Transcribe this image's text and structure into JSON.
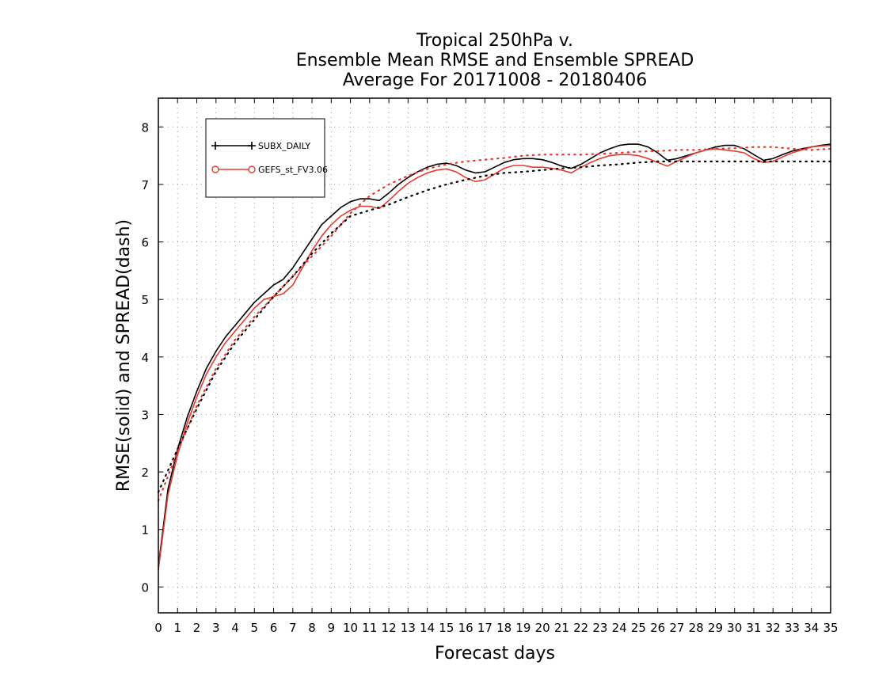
{
  "chart_data": {
    "type": "line",
    "title": [
      "Tropical 250hPa v.",
      "Ensemble Mean RMSE and Ensemble SPREAD",
      "Average For 20171008 - 20180406"
    ],
    "xlabel": "Forecast days",
    "ylabel": "RMSE(solid) and SPREAD(dash)",
    "xlim": [
      0,
      35
    ],
    "ylim": [
      -0.45,
      8.5
    ],
    "xticks": [
      0,
      1,
      2,
      3,
      4,
      5,
      6,
      7,
      8,
      9,
      10,
      11,
      12,
      13,
      14,
      15,
      16,
      17,
      18,
      19,
      20,
      21,
      22,
      23,
      24,
      25,
      26,
      27,
      28,
      29,
      30,
      31,
      32,
      33,
      34,
      35
    ],
    "yticks": [
      0,
      1,
      2,
      3,
      4,
      5,
      6,
      7,
      8
    ],
    "grid": true,
    "legend_position": "top-left",
    "series": [
      {
        "name": "SUBX_DAILY",
        "style": "solid",
        "color": "#000000",
        "marker": "plus",
        "x": [
          0,
          0.5,
          1,
          1.5,
          2,
          2.5,
          3,
          3.5,
          4,
          4.5,
          5,
          5.5,
          6,
          6.5,
          7,
          7.5,
          8,
          8.5,
          9,
          9.5,
          10,
          10.5,
          11,
          11.5,
          12,
          12.5,
          13,
          13.5,
          14,
          14.5,
          15,
          15.5,
          16,
          16.5,
          17,
          17.5,
          18,
          18.5,
          19,
          19.5,
          20,
          20.5,
          21,
          21.5,
          22,
          22.5,
          23,
          23.5,
          24,
          24.5,
          25,
          25.5,
          26,
          26.5,
          27,
          27.5,
          28,
          28.5,
          29,
          29.5,
          30,
          30.5,
          31,
          31.5,
          32,
          32.5,
          33,
          33.5,
          34,
          34.5,
          35
        ],
        "values": [
          0.35,
          1.7,
          2.4,
          2.95,
          3.4,
          3.8,
          4.1,
          4.35,
          4.55,
          4.75,
          4.95,
          5.1,
          5.25,
          5.35,
          5.55,
          5.8,
          6.05,
          6.3,
          6.45,
          6.6,
          6.7,
          6.75,
          6.75,
          6.72,
          6.85,
          7.0,
          7.12,
          7.22,
          7.3,
          7.35,
          7.37,
          7.33,
          7.25,
          7.2,
          7.22,
          7.3,
          7.38,
          7.43,
          7.45,
          7.45,
          7.43,
          7.38,
          7.32,
          7.28,
          7.35,
          7.45,
          7.55,
          7.62,
          7.68,
          7.7,
          7.7,
          7.65,
          7.55,
          7.42,
          7.45,
          7.5,
          7.55,
          7.6,
          7.65,
          7.68,
          7.68,
          7.62,
          7.52,
          7.42,
          7.45,
          7.52,
          7.58,
          7.62,
          7.65,
          7.68,
          7.7
        ]
      },
      {
        "name": "GEFS_st_FV3.06",
        "style": "solid",
        "color": "#e8392f",
        "marker": "circle",
        "x": [
          0,
          0.5,
          1,
          1.5,
          2,
          2.5,
          3,
          3.5,
          4,
          4.5,
          5,
          5.5,
          6,
          6.5,
          7,
          7.5,
          8,
          8.5,
          9,
          9.5,
          10,
          10.5,
          11,
          11.5,
          12,
          12.5,
          13,
          13.5,
          14,
          14.5,
          15,
          15.5,
          16,
          16.5,
          17,
          17.5,
          18,
          18.5,
          19,
          19.5,
          20,
          20.5,
          21,
          21.5,
          22,
          22.5,
          23,
          23.5,
          24,
          24.5,
          25,
          25.5,
          26,
          26.5,
          27,
          27.5,
          28,
          28.5,
          29,
          29.5,
          30,
          30.5,
          31,
          31.5,
          32,
          32.5,
          33,
          33.5,
          34,
          34.5,
          35
        ],
        "values": [
          0.3,
          1.6,
          2.3,
          2.85,
          3.3,
          3.7,
          4.0,
          4.25,
          4.45,
          4.65,
          4.85,
          5.0,
          5.05,
          5.1,
          5.25,
          5.55,
          5.85,
          6.1,
          6.3,
          6.45,
          6.55,
          6.62,
          6.62,
          6.58,
          6.72,
          6.88,
          7.02,
          7.12,
          7.2,
          7.25,
          7.27,
          7.22,
          7.12,
          7.05,
          7.08,
          7.18,
          7.28,
          7.33,
          7.33,
          7.3,
          7.3,
          7.28,
          7.25,
          7.2,
          7.3,
          7.38,
          7.45,
          7.5,
          7.52,
          7.52,
          7.5,
          7.45,
          7.38,
          7.32,
          7.4,
          7.48,
          7.55,
          7.6,
          7.62,
          7.6,
          7.58,
          7.55,
          7.45,
          7.38,
          7.4,
          7.48,
          7.55,
          7.6,
          7.65,
          7.67,
          7.68
        ]
      },
      {
        "name": "SUBX_DAILY spread",
        "style": "dotted",
        "color": "#000000",
        "x": [
          0,
          1,
          2,
          3,
          4,
          5,
          6,
          7,
          8,
          9,
          10,
          11,
          12,
          13,
          14,
          15,
          16,
          17,
          18,
          19,
          20,
          21,
          22,
          23,
          24,
          25,
          26,
          27,
          28,
          29,
          30,
          31,
          32,
          33,
          34,
          35
        ],
        "values": [
          1.65,
          2.4,
          3.1,
          3.75,
          4.25,
          4.65,
          5.05,
          5.4,
          5.8,
          6.15,
          6.45,
          6.55,
          6.65,
          6.78,
          6.9,
          7.0,
          7.08,
          7.15,
          7.2,
          7.22,
          7.25,
          7.28,
          7.3,
          7.33,
          7.35,
          7.38,
          7.4,
          7.4,
          7.4,
          7.4,
          7.4,
          7.4,
          7.4,
          7.4,
          7.4,
          7.4
        ]
      },
      {
        "name": "GEFS_st_FV3.06 spread",
        "style": "dotted",
        "color": "#e8392f",
        "x": [
          0,
          1,
          2,
          3,
          4,
          5,
          6,
          7,
          8,
          9,
          10,
          11,
          12,
          13,
          14,
          15,
          16,
          17,
          18,
          19,
          20,
          21,
          22,
          23,
          24,
          25,
          26,
          27,
          28,
          29,
          30,
          31,
          32,
          33,
          34,
          35
        ],
        "values": [
          1.5,
          2.35,
          3.15,
          3.8,
          4.3,
          4.7,
          5.05,
          5.4,
          5.75,
          6.1,
          6.5,
          6.8,
          7.0,
          7.15,
          7.27,
          7.35,
          7.4,
          7.43,
          7.46,
          7.5,
          7.52,
          7.52,
          7.52,
          7.53,
          7.55,
          7.57,
          7.58,
          7.6,
          7.6,
          7.62,
          7.63,
          7.65,
          7.65,
          7.62,
          7.6,
          7.62
        ]
      }
    ]
  }
}
